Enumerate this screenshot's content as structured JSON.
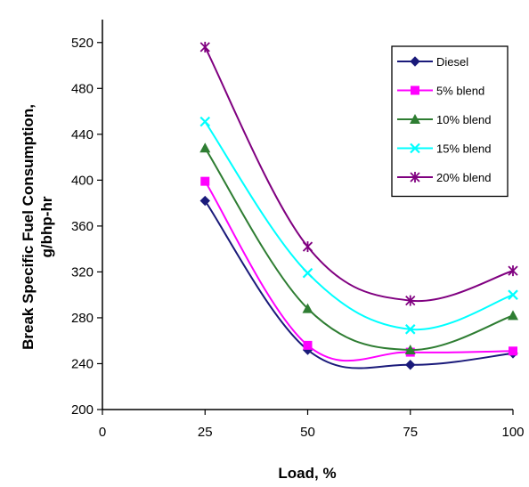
{
  "chart_data": {
    "type": "line",
    "title": "",
    "xlabel": "Load, %",
    "ylabel": "Break Specific Fuel Consumption, g/bhp-hr",
    "ylabel_lines": [
      "Break Specific Fuel Consumption,",
      "g/bhp-hr"
    ],
    "xlim": [
      0,
      100
    ],
    "ylim": [
      200,
      540
    ],
    "x_ticks": [
      0,
      25,
      50,
      75,
      100
    ],
    "y_ticks": [
      200,
      240,
      280,
      320,
      360,
      400,
      440,
      480,
      520
    ],
    "x": [
      25,
      50,
      75,
      100
    ],
    "grid": false,
    "legend_position": "top-right",
    "series": [
      {
        "name": "Diesel",
        "values": [
          382,
          252,
          239,
          249
        ],
        "color": "#1a1a7a",
        "marker": "diamond"
      },
      {
        "name": "5% blend",
        "values": [
          399,
          256,
          250,
          251
        ],
        "color": "#ff00ff",
        "marker": "square"
      },
      {
        "name": "10% blend",
        "values": [
          428,
          288,
          252,
          282
        ],
        "color": "#2e7d32",
        "marker": "triangle"
      },
      {
        "name": "15% blend",
        "values": [
          451,
          319,
          270,
          300
        ],
        "color": "#00ffff",
        "marker": "x"
      },
      {
        "name": "20% blend",
        "values": [
          516,
          342,
          295,
          321
        ],
        "color": "#800080",
        "marker": "star"
      }
    ]
  }
}
